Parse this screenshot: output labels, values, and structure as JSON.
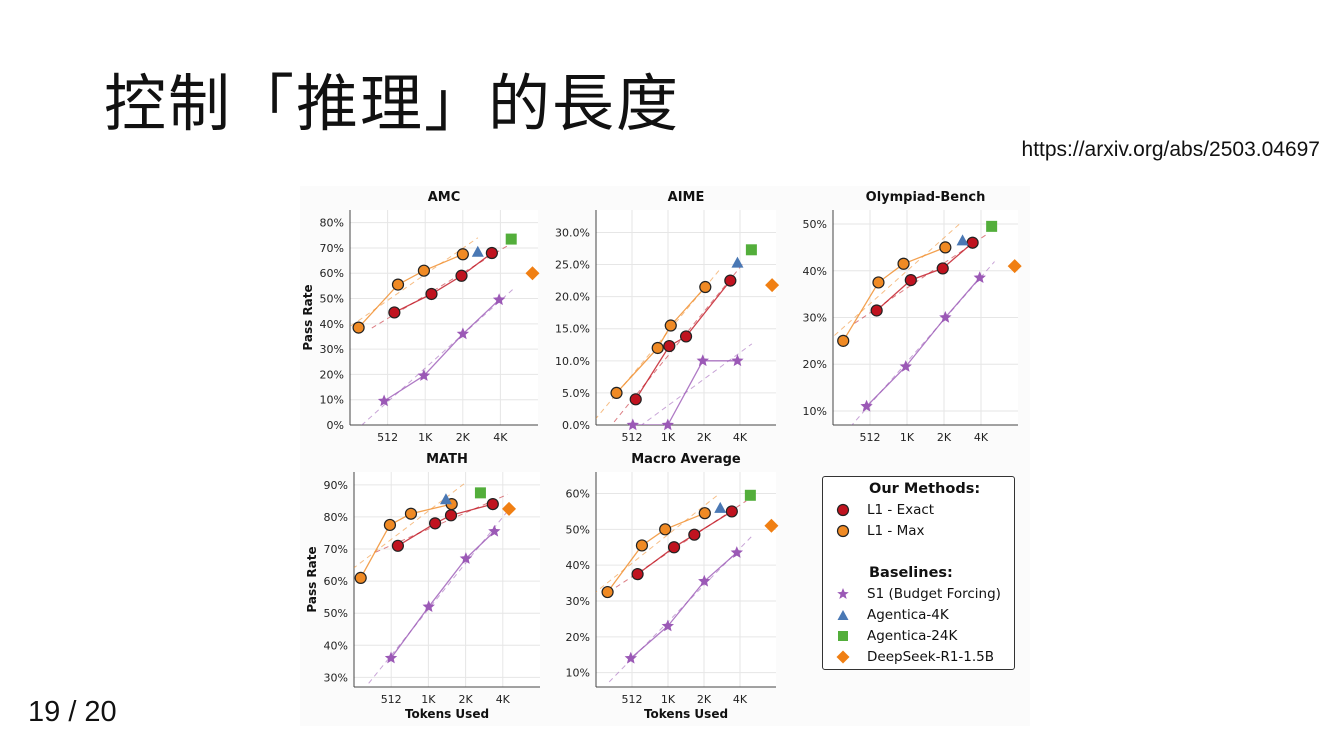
{
  "slide": {
    "title": "控制「推理」的長度",
    "source_url": "https://arxiv.org/abs/2503.04697",
    "page_number": "19 / 20"
  },
  "colors": {
    "l1_exact": "#c0131f",
    "l1_max": "#f08a24",
    "s1": "#9b59b6",
    "agentica_4k": "#4a78b4",
    "agentica_24k": "#53ae3b",
    "deepseek": "#f07f13"
  },
  "legend": {
    "our_methods_title": "Our Methods:",
    "baselines_title": "Baselines:",
    "items": [
      {
        "label": "L1 - Exact",
        "marker": "circle",
        "color": "#c0131f"
      },
      {
        "label": "L1 - Max",
        "marker": "circle",
        "color": "#f08a24"
      },
      {
        "label": "S1 (Budget Forcing)",
        "marker": "star",
        "color": "#9b59b6"
      },
      {
        "label": "Agentica-4K",
        "marker": "triangle",
        "color": "#4a78b4"
      },
      {
        "label": "Agentica-24K",
        "marker": "square",
        "color": "#53ae3b"
      },
      {
        "label": "DeepSeek-R1-1.5B",
        "marker": "diamond",
        "color": "#f07f13"
      }
    ]
  },
  "chart_data": [
    {
      "type": "scatter",
      "title": "AMC",
      "xlabel": "",
      "ylabel": "Pass Rate",
      "x_scale": "log2",
      "xlim": [
        256,
        8192
      ],
      "ylim": [
        0,
        85
      ],
      "x_ticks": [
        512,
        1024,
        2048,
        4096
      ],
      "x_tick_labels": [
        "512",
        "1K",
        "2K",
        "4K"
      ],
      "y_ticks": [
        0,
        10,
        20,
        30,
        40,
        50,
        60,
        70,
        80
      ],
      "y_tick_labels": [
        "0%",
        "10%",
        "20%",
        "30%",
        "40%",
        "50%",
        "60%",
        "70%",
        "80%"
      ],
      "grid": true,
      "series": [
        {
          "name": "L1 - Exact",
          "points": [
            [
              580,
              44.5
            ],
            [
              1150,
              51.8
            ],
            [
              2000,
              59
            ],
            [
              3500,
              68
            ]
          ]
        },
        {
          "name": "L1 - Max",
          "points": [
            [
              300,
              38.5
            ],
            [
              620,
              55.5
            ],
            [
              1000,
              61
            ],
            [
              2050,
              67.5
            ]
          ]
        },
        {
          "name": "S1 (Budget Forcing)",
          "points": [
            [
              480,
              9.5
            ],
            [
              1000,
              19.5
            ],
            [
              2050,
              36
            ],
            [
              4000,
              49.5
            ]
          ]
        },
        {
          "name": "Agentica-4K",
          "points": [
            [
              2700,
              68.5
            ]
          ]
        },
        {
          "name": "Agentica-24K",
          "points": [
            [
              5000,
              73.5
            ]
          ]
        },
        {
          "name": "DeepSeek-R1-1.5B",
          "points": [
            [
              7400,
              60
            ]
          ]
        }
      ]
    },
    {
      "type": "scatter",
      "title": "AIME",
      "xlabel": "",
      "ylabel": "",
      "x_scale": "log2",
      "xlim": [
        256,
        8192
      ],
      "ylim": [
        0,
        33.5
      ],
      "x_ticks": [
        512,
        1024,
        2048,
        4096
      ],
      "x_tick_labels": [
        "512",
        "1K",
        "2K",
        "4K"
      ],
      "y_ticks": [
        0,
        5,
        10,
        15,
        20,
        25,
        30
      ],
      "y_tick_labels": [
        "0.0%",
        "5.0%",
        "10.0%",
        "15.0%",
        "20.0%",
        "25.0%",
        "30.0%"
      ],
      "grid": true,
      "series": [
        {
          "name": "L1 - Exact",
          "points": [
            [
              550,
              4
            ],
            [
              1050,
              12.3
            ],
            [
              1450,
              13.8
            ],
            [
              3400,
              22.5
            ]
          ]
        },
        {
          "name": "L1 - Max",
          "points": [
            [
              380,
              5
            ],
            [
              840,
              12
            ],
            [
              1080,
              15.5
            ],
            [
              2100,
              21.5
            ]
          ]
        },
        {
          "name": "S1 (Budget Forcing)",
          "points": [
            [
              520,
              0
            ],
            [
              1020,
              0
            ],
            [
              2000,
              10
            ],
            [
              3900,
              10
            ]
          ]
        },
        {
          "name": "Agentica-4K",
          "points": [
            [
              3900,
              25.3
            ]
          ]
        },
        {
          "name": "Agentica-24K",
          "points": [
            [
              5100,
              27.3
            ]
          ]
        },
        {
          "name": "DeepSeek-R1-1.5B",
          "points": [
            [
              7600,
              21.8
            ]
          ]
        }
      ]
    },
    {
      "type": "scatter",
      "title": "Olympiad-Bench",
      "xlabel": "",
      "ylabel": "",
      "x_scale": "log2",
      "xlim": [
        256,
        8192
      ],
      "ylim": [
        7,
        53
      ],
      "x_ticks": [
        512,
        1024,
        2048,
        4096
      ],
      "x_tick_labels": [
        "512",
        "1K",
        "2K",
        "4K"
      ],
      "y_ticks": [
        10,
        20,
        30,
        40,
        50
      ],
      "y_tick_labels": [
        "10%",
        "20%",
        "30%",
        "40%",
        "50%"
      ],
      "grid": true,
      "series": [
        {
          "name": "L1 - Exact",
          "points": [
            [
              580,
              31.5
            ],
            [
              1100,
              38
            ],
            [
              2000,
              40.5
            ],
            [
              3500,
              46
            ]
          ]
        },
        {
          "name": "L1 - Max",
          "points": [
            [
              310,
              25
            ],
            [
              600,
              37.5
            ],
            [
              960,
              41.5
            ],
            [
              2100,
              45
            ]
          ]
        },
        {
          "name": "S1 (Budget Forcing)",
          "points": [
            [
              480,
              11
            ],
            [
              1000,
              19.5
            ],
            [
              2100,
              30
            ],
            [
              4000,
              38.5
            ]
          ]
        },
        {
          "name": "Agentica-4K",
          "points": [
            [
              2900,
              46.5
            ]
          ]
        },
        {
          "name": "Agentica-24K",
          "points": [
            [
              5000,
              49.5
            ]
          ]
        },
        {
          "name": "DeepSeek-R1-1.5B",
          "points": [
            [
              7700,
              41
            ]
          ]
        }
      ]
    },
    {
      "type": "scatter",
      "title": "MATH",
      "xlabel": "Tokens Used",
      "ylabel": "Pass Rate",
      "x_scale": "log2",
      "xlim": [
        256,
        8192
      ],
      "ylim": [
        27,
        94
      ],
      "x_ticks": [
        512,
        1024,
        2048,
        4096
      ],
      "x_tick_labels": [
        "512",
        "1K",
        "2K",
        "4K"
      ],
      "y_ticks": [
        30,
        40,
        50,
        60,
        70,
        80,
        90
      ],
      "y_tick_labels": [
        "30%",
        "40%",
        "50%",
        "60%",
        "70%",
        "80%",
        "90%"
      ],
      "grid": true,
      "series": [
        {
          "name": "L1 - Exact",
          "points": [
            [
              580,
              71
            ],
            [
              1160,
              78
            ],
            [
              1560,
              80.5
            ],
            [
              3400,
              84
            ]
          ]
        },
        {
          "name": "L1 - Max",
          "points": [
            [
              290,
              61
            ],
            [
              500,
              77.5
            ],
            [
              740,
              81
            ],
            [
              1580,
              84
            ]
          ]
        },
        {
          "name": "S1 (Budget Forcing)",
          "points": [
            [
              510,
              36
            ],
            [
              1030,
              52
            ],
            [
              2060,
              67
            ],
            [
              3500,
              75.5
            ]
          ]
        },
        {
          "name": "Agentica-4K",
          "points": [
            [
              1420,
              85.5
            ]
          ]
        },
        {
          "name": "Agentica-24K",
          "points": [
            [
              2700,
              87.5
            ]
          ]
        },
        {
          "name": "DeepSeek-R1-1.5B",
          "points": [
            [
              4600,
              82.5
            ]
          ]
        }
      ]
    },
    {
      "type": "scatter",
      "title": "Macro Average",
      "xlabel": "Tokens Used",
      "ylabel": "",
      "x_scale": "log2",
      "xlim": [
        256,
        8192
      ],
      "ylim": [
        6,
        66
      ],
      "x_ticks": [
        512,
        1024,
        2048,
        4096
      ],
      "x_tick_labels": [
        "512",
        "1K",
        "2K",
        "4K"
      ],
      "y_ticks": [
        10,
        20,
        30,
        40,
        50,
        60
      ],
      "y_tick_labels": [
        "10%",
        "20%",
        "30%",
        "40%",
        "50%",
        "60%"
      ],
      "grid": true,
      "series": [
        {
          "name": "L1 - Exact",
          "points": [
            [
              570,
              37.5
            ],
            [
              1150,
              45
            ],
            [
              1700,
              48.5
            ],
            [
              3500,
              55
            ]
          ]
        },
        {
          "name": "L1 - Max",
          "points": [
            [
              320,
              32.5
            ],
            [
              620,
              45.5
            ],
            [
              970,
              50
            ],
            [
              2080,
              54.5
            ]
          ]
        },
        {
          "name": "S1 (Budget Forcing)",
          "points": [
            [
              500,
              14
            ],
            [
              1020,
              23
            ],
            [
              2060,
              35.5
            ],
            [
              3850,
              43.5
            ]
          ]
        },
        {
          "name": "Agentica-4K",
          "points": [
            [
              2800,
              56
            ]
          ]
        },
        {
          "name": "Agentica-24K",
          "points": [
            [
              5000,
              59.5
            ]
          ]
        },
        {
          "name": "DeepSeek-R1-1.5B",
          "points": [
            [
              7500,
              51
            ]
          ]
        }
      ]
    }
  ]
}
